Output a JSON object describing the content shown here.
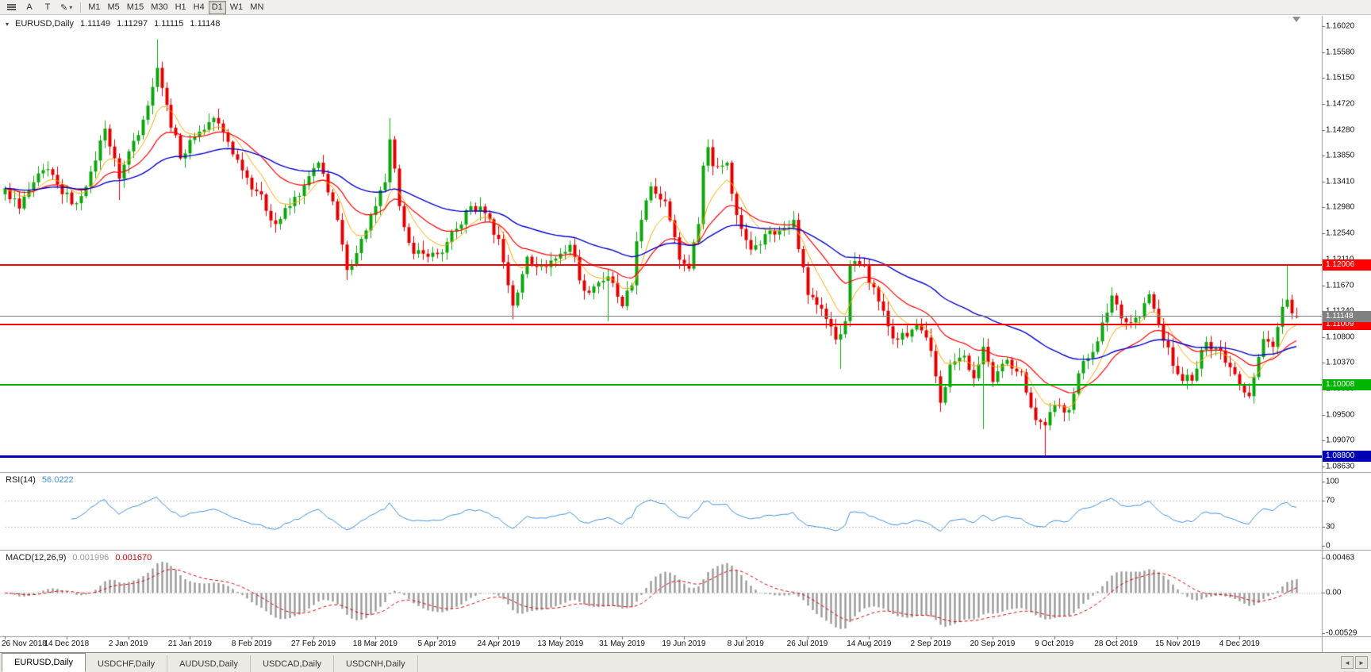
{
  "toolbar": {
    "tool_a": "A",
    "tool_t": "T",
    "draw_icon": "✎",
    "caret": "▾",
    "timeframes": [
      "M1",
      "M5",
      "M15",
      "M30",
      "H1",
      "H4",
      "D1",
      "W1",
      "MN"
    ],
    "selected_timeframe": "D1"
  },
  "chart": {
    "symbol_label": "EURUSD,Daily",
    "dropdown_icon": "▾",
    "quote": {
      "open": "1.11149",
      "high": "1.11297",
      "low": "1.11115",
      "close": "1.11148"
    },
    "price_axis": [
      "1.16020",
      "1.15580",
      "1.15150",
      "1.14720",
      "1.14280",
      "1.13850",
      "1.13410",
      "1.12980",
      "1.12540",
      "1.12110",
      "1.11670",
      "1.11240",
      "1.10800",
      "1.10370",
      "1.09930",
      "1.09500",
      "1.09070",
      "1.08630"
    ],
    "hlines": [
      {
        "name": "resistance-line-upper",
        "price": 1.12006,
        "label": "1.12006",
        "color": "#FF0000",
        "thickness": 2
      },
      {
        "name": "resistance-line-lower",
        "price": 1.11009,
        "label": "1.11009",
        "color": "#FF0000",
        "thickness": 2
      },
      {
        "name": "support-line-green",
        "price": 1.10008,
        "label": "1.10008",
        "color": "#00B400",
        "thickness": 2
      },
      {
        "name": "support-line-blue",
        "price": 1.088,
        "label": "1.08800",
        "color": "#0000B4",
        "thickness": 3
      }
    ],
    "bid": {
      "price": 1.11148,
      "label": "1.11148",
      "color": "#808080"
    },
    "colors": {
      "up": "#0CA50C",
      "down": "#E00000",
      "ma_fast": "#FFA500",
      "ma_mid": "#FF0000",
      "ma_slow": "#0000CD"
    }
  },
  "rsi": {
    "name_label": "RSI(14)",
    "value_label": "56.0222",
    "axis": [
      "100",
      "70",
      "30",
      "0"
    ],
    "levels": [
      70,
      30
    ],
    "color": "#3E8EDE"
  },
  "macd": {
    "name_label": "MACD(12,26,9)",
    "main_value": "0.001996",
    "signal_value": "0.001670",
    "axis": [
      "0.00463",
      "0.00",
      "-0.00529"
    ],
    "hist_color": "#9A9A9A",
    "signal_color": "#E00000"
  },
  "date_labels": [
    {
      "i": 0,
      "label": "26 Nov 2018"
    },
    {
      "i": 13,
      "label": "14 Dec 2018"
    },
    {
      "i": 26,
      "label": "2 Jan 2019"
    },
    {
      "i": 39,
      "label": "21 Jan 2019"
    },
    {
      "i": 52,
      "label": "8 Feb 2019"
    },
    {
      "i": 65,
      "label": "27 Feb 2019"
    },
    {
      "i": 78,
      "label": "18 Mar 2019"
    },
    {
      "i": 91,
      "label": "5 Apr 2019"
    },
    {
      "i": 104,
      "label": "24 Apr 2019"
    },
    {
      "i": 117,
      "label": "13 May 2019"
    },
    {
      "i": 130,
      "label": "31 May 2019"
    },
    {
      "i": 143,
      "label": "19 Jun 2019"
    },
    {
      "i": 156,
      "label": "8 Jul 2019"
    },
    {
      "i": 169,
      "label": "26 Jul 2019"
    },
    {
      "i": 182,
      "label": "14 Aug 2019"
    },
    {
      "i": 195,
      "label": "2 Sep 2019"
    },
    {
      "i": 208,
      "label": "20 Sep 2019"
    },
    {
      "i": 221,
      "label": "9 Oct 2019"
    },
    {
      "i": 234,
      "label": "28 Oct 2019"
    },
    {
      "i": 247,
      "label": "15 Nov 2019"
    },
    {
      "i": 260,
      "label": "4 Dec 2019"
    }
  ],
  "tabs": [
    {
      "label": "EURUSD,Daily",
      "active": true
    },
    {
      "label": "USDCHF,Daily",
      "active": false
    },
    {
      "label": "AUDUSD,Daily",
      "active": false
    },
    {
      "label": "USDCAD,Daily",
      "active": false
    },
    {
      "label": "USDCNH,Daily",
      "active": false
    }
  ],
  "tab_nav": {
    "left": "◄",
    "right": "►"
  },
  "chart_data": {
    "type": "candlestick",
    "symbol": "EURUSD",
    "period": "Daily",
    "count": 273,
    "noise": 0.0018,
    "wick": 0.0016,
    "anchors": [
      [
        0,
        1.133
      ],
      [
        3,
        1.1296
      ],
      [
        6,
        1.134
      ],
      [
        9,
        1.1362
      ],
      [
        12,
        1.132
      ],
      [
        15,
        1.1305
      ],
      [
        18,
        1.1358
      ],
      [
        21,
        1.143
      ],
      [
        24,
        1.1346
      ],
      [
        26,
        1.1392
      ],
      [
        29,
        1.1445
      ],
      [
        31,
        1.15
      ],
      [
        32,
        1.1532
      ],
      [
        34,
        1.147
      ],
      [
        37,
        1.138
      ],
      [
        40,
        1.1416
      ],
      [
        44,
        1.1448
      ],
      [
        47,
        1.1408
      ],
      [
        50,
        1.136
      ],
      [
        53,
        1.1325
      ],
      [
        57,
        1.127
      ],
      [
        60,
        1.13
      ],
      [
        63,
        1.1335
      ],
      [
        66,
        1.1373
      ],
      [
        69,
        1.1308
      ],
      [
        72,
        1.1193
      ],
      [
        75,
        1.1245
      ],
      [
        78,
        1.13
      ],
      [
        80,
        1.134
      ],
      [
        81,
        1.1412
      ],
      [
        83,
        1.13
      ],
      [
        86,
        1.122
      ],
      [
        89,
        1.1215
      ],
      [
        92,
        1.1222
      ],
      [
        95,
        1.1262
      ],
      [
        98,
        1.13
      ],
      [
        101,
        1.1288
      ],
      [
        104,
        1.1245
      ],
      [
        107,
        1.1133
      ],
      [
        108,
        1.1155
      ],
      [
        110,
        1.1215
      ],
      [
        113,
        1.12
      ],
      [
        116,
        1.1212
      ],
      [
        119,
        1.1235
      ],
      [
        122,
        1.1158
      ],
      [
        125,
        1.1172
      ],
      [
        127,
        1.1182
      ],
      [
        130,
        1.1132
      ],
      [
        132,
        1.1167
      ],
      [
        133,
        1.1241
      ],
      [
        136,
        1.1333
      ],
      [
        139,
        1.1308
      ],
      [
        142,
        1.121
      ],
      [
        144,
        1.1195
      ],
      [
        146,
        1.127
      ],
      [
        147,
        1.1368
      ],
      [
        148,
        1.1399
      ],
      [
        149,
        1.1367
      ],
      [
        152,
        1.1373
      ],
      [
        154,
        1.1285
      ],
      [
        157,
        1.1227
      ],
      [
        160,
        1.1253
      ],
      [
        163,
        1.1259
      ],
      [
        166,
        1.1277
      ],
      [
        169,
        1.1151
      ],
      [
        172,
        1.1128
      ],
      [
        175,
        1.1076
      ],
      [
        176,
        1.1085
      ],
      [
        177,
        1.1107
      ],
      [
        178,
        1.1202
      ],
      [
        181,
        1.12
      ],
      [
        184,
        1.114
      ],
      [
        187,
        1.1078
      ],
      [
        190,
        1.1081
      ],
      [
        192,
        1.1101
      ],
      [
        195,
        1.1057
      ],
      [
        197,
        1.097
      ],
      [
        199,
        1.1034
      ],
      [
        202,
        1.1049
      ],
      [
        204,
        1.1011
      ],
      [
        206,
        1.1064
      ],
      [
        208,
        1.1005
      ],
      [
        211,
        1.1042
      ],
      [
        214,
        1.1021
      ],
      [
        217,
        1.0941
      ],
      [
        219,
        1.0932
      ],
      [
        221,
        1.0966
      ],
      [
        224,
        1.0958
      ],
      [
        227,
        1.104
      ],
      [
        230,
        1.1073
      ],
      [
        233,
        1.115
      ],
      [
        236,
        1.1105
      ],
      [
        239,
        1.1113
      ],
      [
        241,
        1.1152
      ],
      [
        244,
        1.1074
      ],
      [
        247,
        1.1018
      ],
      [
        250,
        1.1007
      ],
      [
        253,
        1.1072
      ],
      [
        256,
        1.1058
      ],
      [
        259,
        1.1018
      ],
      [
        262,
        1.0981
      ],
      [
        265,
        1.1077
      ],
      [
        267,
        1.1064
      ],
      [
        269,
        1.1131
      ],
      [
        270,
        1.1143
      ],
      [
        271,
        1.112
      ],
      [
        272,
        1.11148
      ]
    ],
    "specials": [
      {
        "i": 24,
        "low": 1.131
      },
      {
        "i": 32,
        "high": 1.158
      },
      {
        "i": 72,
        "low": 1.1176
      },
      {
        "i": 81,
        "high": 1.1448
      },
      {
        "i": 107,
        "low": 1.111
      },
      {
        "i": 127,
        "low": 1.1107
      },
      {
        "i": 148,
        "high": 1.1412
      },
      {
        "i": 176,
        "low": 1.1027
      },
      {
        "i": 206,
        "low": 1.0926
      },
      {
        "i": 219,
        "low": 1.0879
      },
      {
        "i": 270,
        "high": 1.12
      }
    ],
    "last_candle": {
      "o": 1.11149,
      "h": 1.11297,
      "l": 1.11115,
      "c": 1.11148
    },
    "indicators": {
      "rsi_period": 14,
      "macd": [
        12,
        26,
        9
      ],
      "ma_fast": 8,
      "ma_mid": 20,
      "ma_slow": 50
    }
  }
}
